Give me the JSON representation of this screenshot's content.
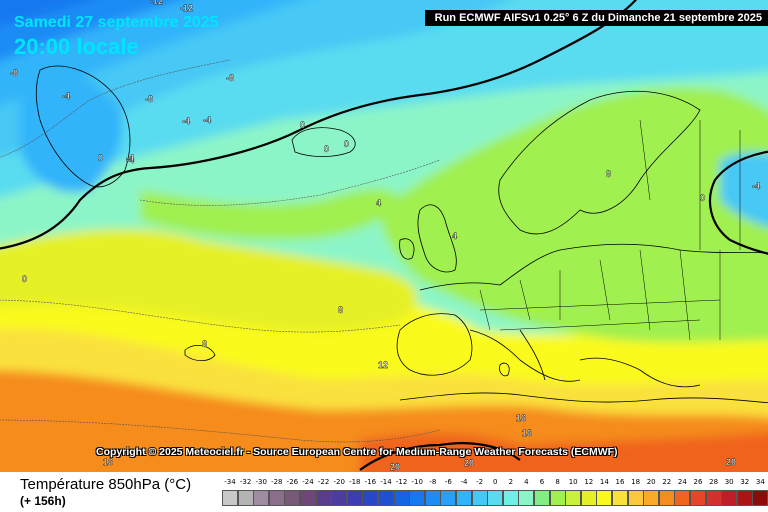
{
  "header": {
    "date": "Samedi 27 septembre 2025",
    "time": "20:00 locale",
    "run": "Run ECMWF AIFSv1 0.25° 6 Z du Dimanche 21 septembre 2025"
  },
  "copyright": "Copyright © 2025 Meteociel.fr - Source European Centre for Medium-Range Weather Forecasts (ECMWF)",
  "footer": {
    "variable": "Température 850hPa (°C)",
    "lead": "(+ 156h)"
  },
  "map": {
    "contour_labels": [
      "-12",
      "-12",
      "-8",
      "-8",
      "-8",
      "-4",
      "-4",
      "-4",
      "-4",
      "-4",
      "0",
      "0",
      "0",
      "0",
      "0",
      "4",
      "4",
      "8",
      "8",
      "8",
      "12",
      "16",
      "16",
      "16",
      "20",
      "20",
      "20",
      "-4",
      "0"
    ]
  },
  "legend": {
    "labels": [
      "-34",
      "-32",
      "-30",
      "-28",
      "-26",
      "-24",
      "-22",
      "-20",
      "-18",
      "-16",
      "-14",
      "-12",
      "-10",
      "-8",
      "-6",
      "-4",
      "-2",
      "0",
      "2",
      "4",
      "6",
      "8",
      "10",
      "12",
      "14",
      "16",
      "18",
      "20",
      "22",
      "24",
      "26",
      "28",
      "30",
      "32",
      "34"
    ],
    "colors": [
      "#c8c8c8",
      "#b4b4b4",
      "#a08ca0",
      "#8c6e8c",
      "#785a78",
      "#6e4678",
      "#5a3c8c",
      "#4b3ca0",
      "#3c3cb4",
      "#2846c8",
      "#1e50d2",
      "#1464e6",
      "#1478f0",
      "#1e8cf5",
      "#28a0fa",
      "#32b4fa",
      "#46c8f5",
      "#5adcf0",
      "#6ef0e6",
      "#8cf5c8",
      "#82ee82",
      "#a0f050",
      "#c8f03c",
      "#e6f028",
      "#fafa1e",
      "#fae13c",
      "#fac83c",
      "#faaa28",
      "#f58c1e",
      "#f0641e",
      "#e64628",
      "#d2322d",
      "#be1e28",
      "#aa1414",
      "#8c0a0a"
    ]
  }
}
